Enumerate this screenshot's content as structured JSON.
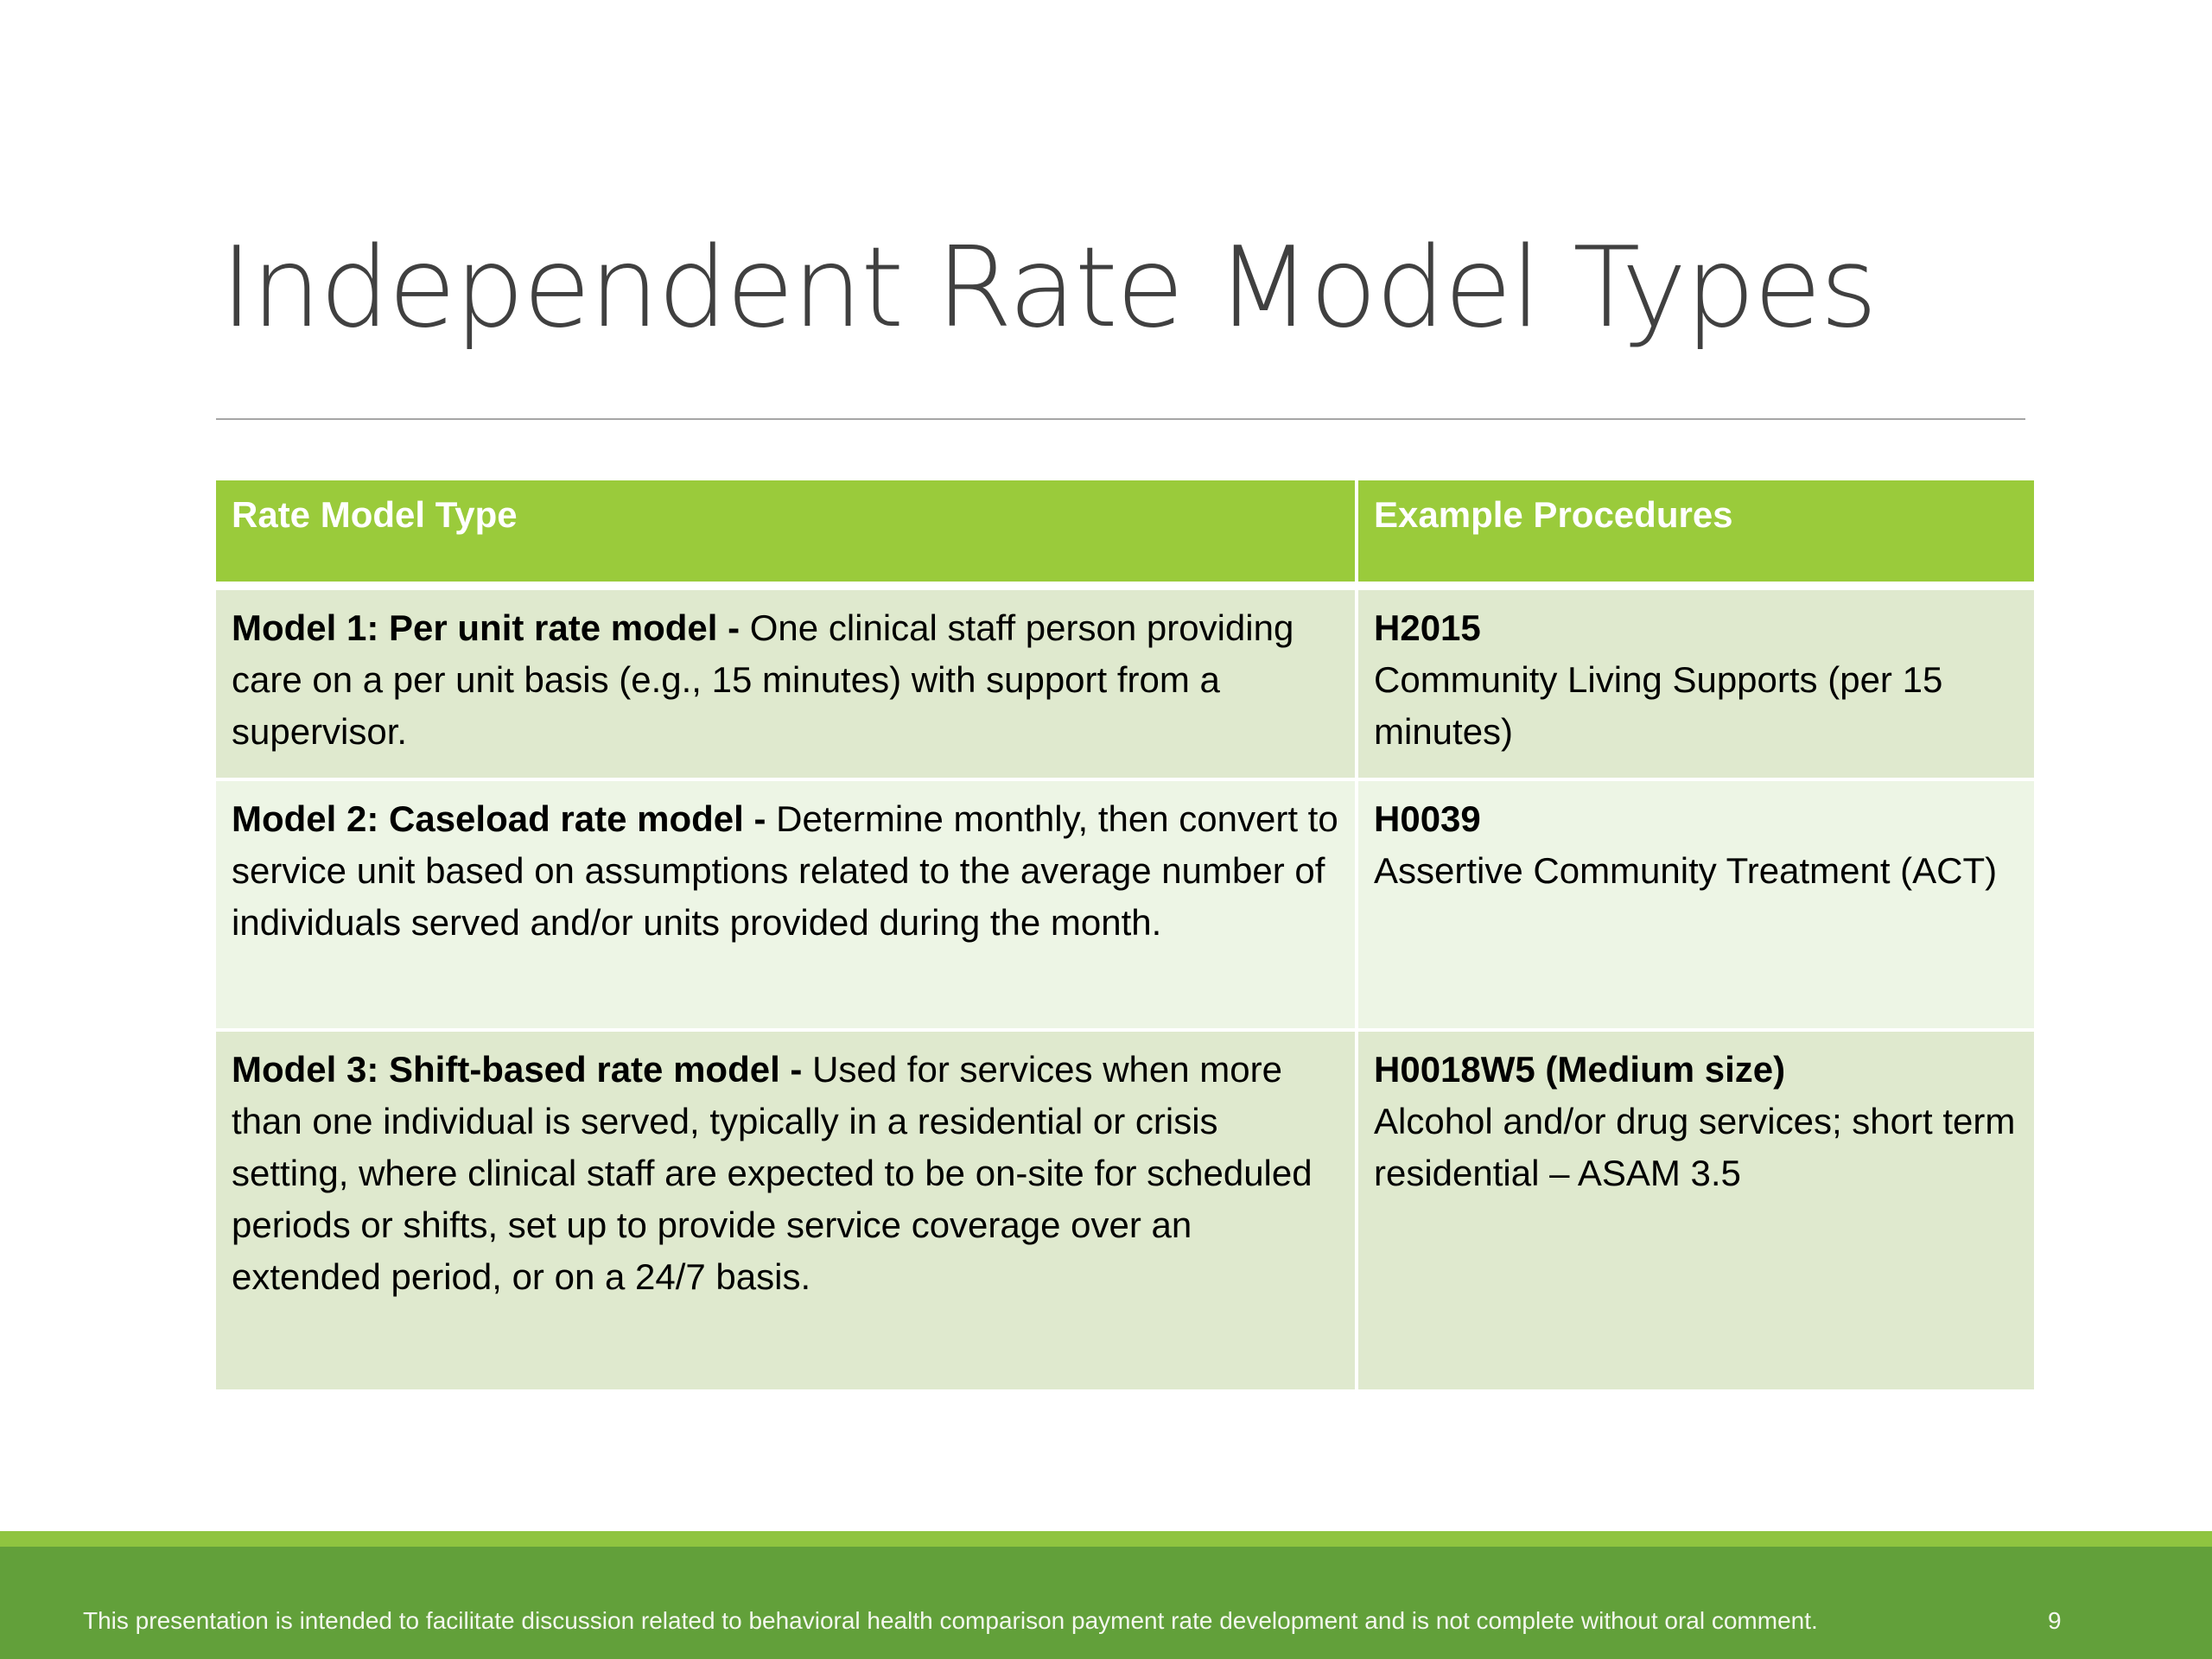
{
  "slide": {
    "title": "Independent Rate Model Types",
    "page_number": "9"
  },
  "table": {
    "headers": [
      "Rate Model Type",
      "Example Procedures"
    ],
    "rows": [
      {
        "model_label": "Model 1: Per unit rate model -",
        "model_text": " One clinical staff person providing care on a per unit basis (e.g., 15 minutes) with support from a supervisor.",
        "code": "H2015",
        "procedure": "Community Living Supports (per 15 minutes)"
      },
      {
        "model_label": "Model 2: Caseload rate model -",
        "model_text": " Determine monthly, then convert to service unit based on assumptions related to the average number of individuals served and/or units provided during the month.",
        "code": "H0039",
        "procedure": "Assertive Community Treatment (ACT)"
      },
      {
        "model_label": "Model 3: Shift-based rate model -",
        "model_text": " Used for services when more than one individual is served, typically in a residential or crisis setting, where clinical staff are expected to be on-site for scheduled periods or shifts, set up to provide service coverage over an extended period, or on a 24/7 basis.",
        "code": "H0018W5 (Medium size)",
        "procedure": "Alcohol and/or drug services; short term residential – ASAM 3.5"
      }
    ]
  },
  "footer": {
    "disclaimer": "This presentation is intended to facilitate discussion related to behavioral health comparison payment rate development and is not complete without oral comment."
  },
  "colors": {
    "header_green": "#9acb3b",
    "row_odd": "#dfe9ce",
    "row_even": "#edf5e5",
    "footer_green": "#62a03a",
    "footer_stripe": "#8fc440",
    "title_gray": "#404040"
  }
}
